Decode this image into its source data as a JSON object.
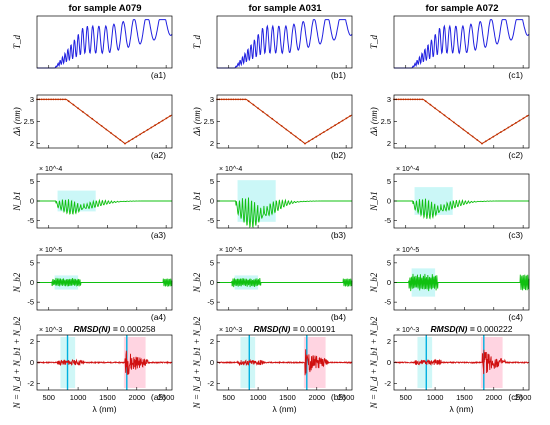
{
  "figure": {
    "column_titles": [
      "for sample A079",
      "for sample A031",
      "for sample A072"
    ],
    "row_ylabels": [
      "T_d",
      "Δλ (nm)",
      "N_b1",
      "N_b2",
      "N = N_d + N_b1 + N_b2"
    ],
    "xlabel": "λ (nm)",
    "x_ticks": [
      500,
      1000,
      1500,
      2000,
      2500
    ],
    "exponents": {
      "row3": "× 10^-4",
      "row4": "× 10^-5",
      "row5": "× 10^-3"
    },
    "panel_labels": [
      [
        "(a1)",
        "(a2)",
        "(a3)",
        "(a4)",
        "(a5)"
      ],
      [
        "(b1)",
        "(b2)",
        "(b3)",
        "(b4)",
        "(b5)"
      ],
      [
        "(c1)",
        "(c2)",
        "(c3)",
        "(c4)",
        "(c5)"
      ]
    ],
    "rmsd_label": "RMSD(N) =",
    "rmsd_values": [
      "0.000258",
      "0.000191",
      "0.000222"
    ],
    "colors": {
      "transmittance": "#2020e0",
      "delta_lambda": "#c03000",
      "nb1": "#10c010",
      "nb2": "#10c010",
      "n_total": "#d01010",
      "shade": "#a0f0f0",
      "cyan_line": "#00b0e0",
      "pink": "#ffb0c8"
    }
  },
  "chart_data": [
    {
      "type": "line",
      "title": "for sample A079",
      "xlabel": "λ (nm)",
      "xlim": [
        300,
        2600
      ],
      "rows": [
        {
          "id": "a1",
          "ylabel": "T_d",
          "description_values": {
            "x": [
              300,
              600,
              700,
              800,
              900,
              1000,
              1100,
              1250,
              1400,
              1600,
              1800,
              2000,
              2200,
              2400,
              2600
            ],
            "y_peaks_relative": [
              0,
              0,
              0.1,
              0.35,
              0.5,
              0.55,
              0.6,
              0.62,
              0.66,
              0.7,
              0.74,
              0.8,
              0.84,
              0.88,
              0.6
            ]
          }
        },
        {
          "id": "a2",
          "ylabel": "Δλ (nm)",
          "ylim": [
            1.9,
            3.1
          ],
          "yticks": [
            2,
            2.5,
            3
          ],
          "x": [
            300,
            800,
            1800,
            2600
          ],
          "y": [
            3,
            3,
            2,
            2.65
          ]
        },
        {
          "id": "a3",
          "ylabel": "N_b1",
          "exponent": -4,
          "yticks": [
            -5,
            0,
            5
          ],
          "ylim": [
            -7,
            7
          ],
          "envelope_center_x": 900,
          "max_abs": 3
        },
        {
          "id": "a4",
          "ylabel": "N_b2",
          "exponent": -5,
          "yticks": [
            -5,
            0,
            5
          ],
          "ylim": [
            -7,
            7
          ],
          "max_abs": 2
        },
        {
          "id": "a5",
          "ylabel": "N = N_d + N_b1 + N_b2",
          "exponent": -3,
          "yticks": [
            -2,
            0,
            2
          ],
          "ylim": [
            -2.6,
            2.6
          ],
          "cyan_lines_x": [
            820,
            1830
          ],
          "rmsd": 0.000258
        }
      ]
    },
    {
      "type": "line",
      "title": "for sample A031",
      "xlabel": "λ (nm)",
      "xlim": [
        300,
        2600
      ],
      "rows": [
        {
          "id": "b1",
          "ylabel": "T_d"
        },
        {
          "id": "b2",
          "ylabel": "Δλ (nm)",
          "ylim": [
            1.9,
            3.1
          ],
          "yticks": [
            2,
            2.5,
            3
          ],
          "x": [
            300,
            800,
            1800,
            2600
          ],
          "y": [
            3,
            3,
            2,
            2.65
          ]
        },
        {
          "id": "b3",
          "ylabel": "N_b1",
          "exponent": -4,
          "yticks": [
            -5,
            0,
            5
          ],
          "ylim": [
            -7,
            7
          ],
          "max_abs": 6
        },
        {
          "id": "b4",
          "ylabel": "N_b2",
          "exponent": -5,
          "yticks": [
            -5,
            0,
            5
          ],
          "ylim": [
            -7,
            7
          ],
          "max_abs": 2
        },
        {
          "id": "b5",
          "ylabel": "N = N_d + N_b1 + N_b2",
          "exponent": -3,
          "yticks": [
            -2,
            0,
            2
          ],
          "ylim": [
            -2.6,
            2.6
          ],
          "cyan_lines_x": [
            850,
            1830
          ],
          "rmsd": 0.000191
        }
      ]
    },
    {
      "type": "line",
      "title": "for sample A072",
      "xlabel": "λ (nm)",
      "xlim": [
        300,
        2600
      ],
      "rows": [
        {
          "id": "c1",
          "ylabel": "T_d"
        },
        {
          "id": "c2",
          "ylabel": "Δλ (nm)",
          "ylim": [
            1.9,
            3.1
          ],
          "yticks": [
            2,
            2.5,
            3
          ],
          "x": [
            300,
            800,
            1800,
            2600
          ],
          "y": [
            3,
            3,
            2,
            2.65
          ]
        },
        {
          "id": "c3",
          "ylabel": "N_b1",
          "exponent": -4,
          "yticks": [
            -5,
            0,
            5
          ],
          "ylim": [
            -7,
            7
          ],
          "max_abs": 4
        },
        {
          "id": "c4",
          "ylabel": "N_b2",
          "exponent": -5,
          "yticks": [
            -5,
            0,
            5
          ],
          "ylim": [
            -7,
            7
          ],
          "max_abs": 4
        },
        {
          "id": "c5",
          "ylabel": "N = N_d + N_b1 + N_b2",
          "exponent": -3,
          "yticks": [
            -2,
            0,
            2
          ],
          "ylim": [
            -2.6,
            2.6
          ],
          "cyan_lines_x": [
            850,
            1830
          ],
          "rmsd": 0.000222
        }
      ]
    }
  ]
}
